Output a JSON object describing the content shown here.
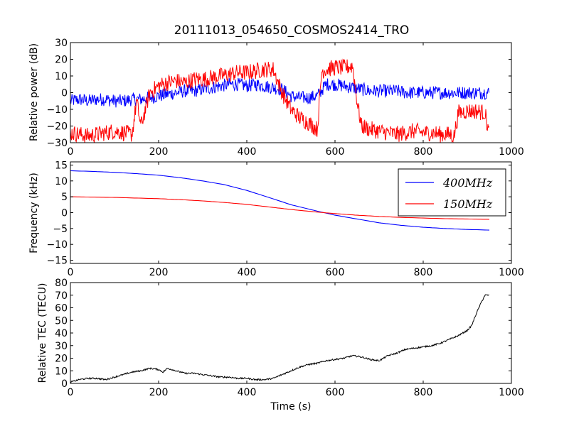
{
  "figure": {
    "title": "20111013_054650_COSMOS2414_TRO"
  },
  "chart_data": [
    {
      "type": "line",
      "panel": "power",
      "xlabel": "",
      "ylabel": "Relative power (dB)",
      "xlim": [
        0,
        1000
      ],
      "ylim": [
        -30,
        30
      ],
      "xticks": [
        "0",
        "200",
        "400",
        "600",
        "800",
        "1000"
      ],
      "yticks": [
        "−30",
        "−20",
        "−10",
        "0",
        "10",
        "20",
        "30"
      ],
      "series": [
        {
          "color": "#0000ff",
          "x": [
            0,
            20,
            40,
            60,
            80,
            100,
            120,
            140,
            160,
            180,
            200,
            220,
            240,
            260,
            280,
            300,
            320,
            340,
            360,
            380,
            400,
            420,
            440,
            460,
            480,
            500,
            520,
            540,
            560,
            580,
            600,
            620,
            640,
            660,
            680,
            700,
            720,
            740,
            760,
            780,
            800,
            820,
            840,
            860,
            880,
            900,
            920,
            940,
            950
          ],
          "values": [
            -5,
            -4,
            -5,
            -4,
            -4,
            -5,
            -5,
            -4,
            -4,
            -3,
            -2,
            -1,
            0,
            1,
            1,
            2,
            3,
            4,
            5,
            5,
            4,
            5,
            4,
            3,
            2,
            -2,
            -3,
            -3,
            -2,
            5,
            5,
            4,
            3,
            2,
            1,
            1,
            1,
            1,
            0,
            0,
            0,
            0,
            0,
            0,
            0,
            0,
            0,
            0,
            0
          ],
          "noise": 4
        },
        {
          "color": "#ff0000",
          "x": [
            0,
            20,
            40,
            60,
            80,
            100,
            120,
            140,
            150,
            160,
            180,
            200,
            220,
            240,
            260,
            280,
            300,
            320,
            340,
            360,
            380,
            400,
            420,
            440,
            460,
            480,
            500,
            520,
            540,
            560,
            570,
            580,
            600,
            620,
            640,
            650,
            660,
            680,
            700,
            720,
            740,
            760,
            780,
            800,
            820,
            840,
            860,
            870,
            880,
            900,
            920,
            940,
            950
          ],
          "values": [
            -24,
            -25,
            -26,
            -25,
            -24,
            -23,
            -24,
            -25,
            -5,
            -20,
            0,
            4,
            6,
            7,
            6,
            8,
            8,
            9,
            10,
            11,
            12,
            12,
            13,
            14,
            14,
            0,
            -10,
            -15,
            -18,
            -22,
            13,
            14,
            15,
            15,
            16,
            -5,
            -20,
            -22,
            -23,
            -24,
            -25,
            -24,
            -23,
            -24,
            -24,
            -25,
            -25,
            -26,
            -12,
            -11,
            -11,
            -12,
            -25
          ],
          "noise": 5
        }
      ]
    },
    {
      "type": "line",
      "panel": "frequency",
      "xlabel": "",
      "ylabel": "Frequency (kHz)",
      "xlim": [
        0,
        1000
      ],
      "ylim": [
        -16,
        16
      ],
      "xticks": [
        "0",
        "200",
        "400",
        "600",
        "800",
        "1000"
      ],
      "yticks": [
        "−15",
        "−10",
        "−5",
        "0",
        "5",
        "10",
        "15"
      ],
      "legend": {
        "placement": "top-right",
        "entries": [
          "400MHz",
          "150MHz"
        ]
      },
      "series": [
        {
          "name": "400MHz",
          "color": "#0000ff",
          "x": [
            0,
            50,
            100,
            150,
            200,
            250,
            300,
            350,
            400,
            450,
            500,
            550,
            600,
            650,
            700,
            750,
            800,
            850,
            900,
            950
          ],
          "values": [
            13.2,
            13.0,
            12.7,
            12.3,
            11.8,
            11.0,
            10.0,
            8.8,
            7.0,
            4.8,
            2.5,
            0.8,
            -0.8,
            -2.0,
            -3.2,
            -4.0,
            -4.6,
            -5.0,
            -5.3,
            -5.5
          ]
        },
        {
          "name": "150MHz",
          "color": "#ff0000",
          "x": [
            0,
            50,
            100,
            150,
            200,
            250,
            300,
            350,
            400,
            450,
            500,
            550,
            600,
            650,
            700,
            750,
            800,
            850,
            900,
            950
          ],
          "values": [
            5.0,
            4.9,
            4.8,
            4.6,
            4.4,
            4.1,
            3.7,
            3.2,
            2.6,
            1.8,
            1.0,
            0.3,
            -0.3,
            -0.8,
            -1.2,
            -1.5,
            -1.7,
            -1.9,
            -2.0,
            -2.1
          ]
        }
      ]
    },
    {
      "type": "line",
      "panel": "tec",
      "xlabel": "Time (s)",
      "ylabel": "Relative TEC (TECU)",
      "xlim": [
        0,
        1000
      ],
      "ylim": [
        0,
        80
      ],
      "xticks": [
        "0",
        "200",
        "400",
        "600",
        "800",
        "1000"
      ],
      "yticks": [
        "0",
        "10",
        "20",
        "30",
        "40",
        "50",
        "60",
        "70",
        "80"
      ],
      "series": [
        {
          "color": "#000000",
          "x": [
            0,
            20,
            40,
            60,
            80,
            100,
            120,
            140,
            160,
            180,
            200,
            210,
            220,
            240,
            260,
            280,
            300,
            320,
            340,
            360,
            380,
            400,
            420,
            440,
            460,
            480,
            500,
            520,
            540,
            560,
            580,
            600,
            620,
            640,
            660,
            680,
            700,
            720,
            740,
            760,
            780,
            800,
            820,
            840,
            860,
            880,
            900,
            910,
            920,
            930,
            940,
            950
          ],
          "values": [
            1,
            3,
            4,
            4,
            3,
            5,
            7,
            9,
            10,
            12,
            11,
            9,
            12,
            10,
            8,
            8,
            7,
            6,
            5,
            5,
            4,
            4,
            3,
            3,
            4,
            7,
            10,
            13,
            15,
            16,
            18,
            19,
            20,
            22,
            21,
            19,
            18,
            22,
            24,
            27,
            28,
            29,
            30,
            32,
            35,
            38,
            42,
            46,
            55,
            63,
            70,
            70
          ],
          "noise": 0.6
        }
      ]
    }
  ]
}
